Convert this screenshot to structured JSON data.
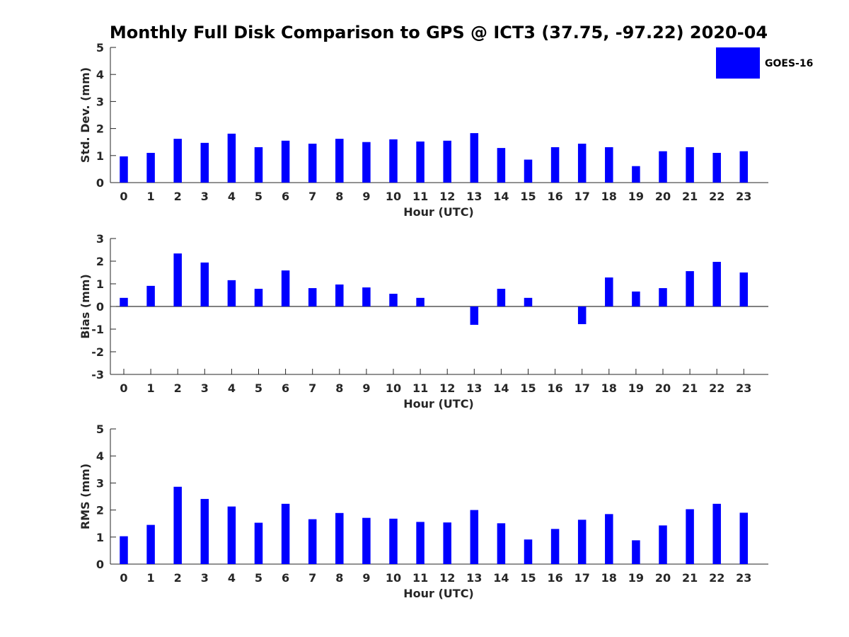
{
  "title": "Monthly Full Disk Comparison to GPS @ ICT3 (37.75, -97.22) 2020-04",
  "legend": {
    "label": "GOES-16",
    "color": "#0000ff",
    "placement": "top-right"
  },
  "chart_data": [
    {
      "type": "bar",
      "xlabel": "Hour (UTC)",
      "ylabel": "Std. Dev. (mm)",
      "ylim": [
        0,
        5
      ],
      "yticks": [
        0,
        1,
        2,
        3,
        4,
        5
      ],
      "categories": [
        "0",
        "1",
        "2",
        "3",
        "4",
        "5",
        "6",
        "7",
        "8",
        "9",
        "10",
        "11",
        "12",
        "13",
        "14",
        "15",
        "16",
        "17",
        "18",
        "19",
        "20",
        "21",
        "22",
        "23"
      ],
      "series": [
        {
          "name": "GOES-16",
          "values": [
            0.97,
            1.1,
            1.62,
            1.47,
            1.81,
            1.31,
            1.55,
            1.44,
            1.62,
            1.5,
            1.6,
            1.52,
            1.55,
            1.83,
            1.28,
            0.85,
            1.31,
            1.44,
            1.31,
            0.61,
            1.16,
            1.31,
            1.1,
            1.16
          ]
        }
      ],
      "grid": false
    },
    {
      "type": "bar",
      "xlabel": "Hour (UTC)",
      "ylabel": "Bias (mm)",
      "ylim": [
        -3,
        3
      ],
      "yticks": [
        -3,
        -2,
        -1,
        0,
        1,
        2,
        3
      ],
      "categories": [
        "0",
        "1",
        "2",
        "3",
        "4",
        "5",
        "6",
        "7",
        "8",
        "9",
        "10",
        "11",
        "12",
        "13",
        "14",
        "15",
        "16",
        "17",
        "18",
        "19",
        "20",
        "21",
        "22",
        "23"
      ],
      "series": [
        {
          "name": "GOES-16",
          "values": [
            0.38,
            0.91,
            2.34,
            1.94,
            1.16,
            0.78,
            1.59,
            0.81,
            0.97,
            0.84,
            0.56,
            0.38,
            0.0,
            -0.81,
            0.78,
            0.38,
            0.0,
            -0.78,
            1.28,
            0.66,
            0.81,
            1.56,
            1.97,
            1.5
          ]
        }
      ],
      "grid": false
    },
    {
      "type": "bar",
      "xlabel": "Hour (UTC)",
      "ylabel": "RMS (mm)",
      "ylim": [
        0,
        5
      ],
      "yticks": [
        0,
        1,
        2,
        3,
        4,
        5
      ],
      "categories": [
        "0",
        "1",
        "2",
        "3",
        "4",
        "5",
        "6",
        "7",
        "8",
        "9",
        "10",
        "11",
        "12",
        "13",
        "14",
        "15",
        "16",
        "17",
        "18",
        "19",
        "20",
        "21",
        "22",
        "23"
      ],
      "series": [
        {
          "name": "GOES-16",
          "values": [
            1.03,
            1.45,
            2.86,
            2.41,
            2.13,
            1.53,
            2.23,
            1.66,
            1.89,
            1.71,
            1.68,
            1.56,
            1.54,
            2.0,
            1.51,
            0.91,
            1.3,
            1.64,
            1.85,
            0.88,
            1.43,
            2.03,
            2.23,
            1.9
          ]
        }
      ],
      "grid": false
    }
  ]
}
